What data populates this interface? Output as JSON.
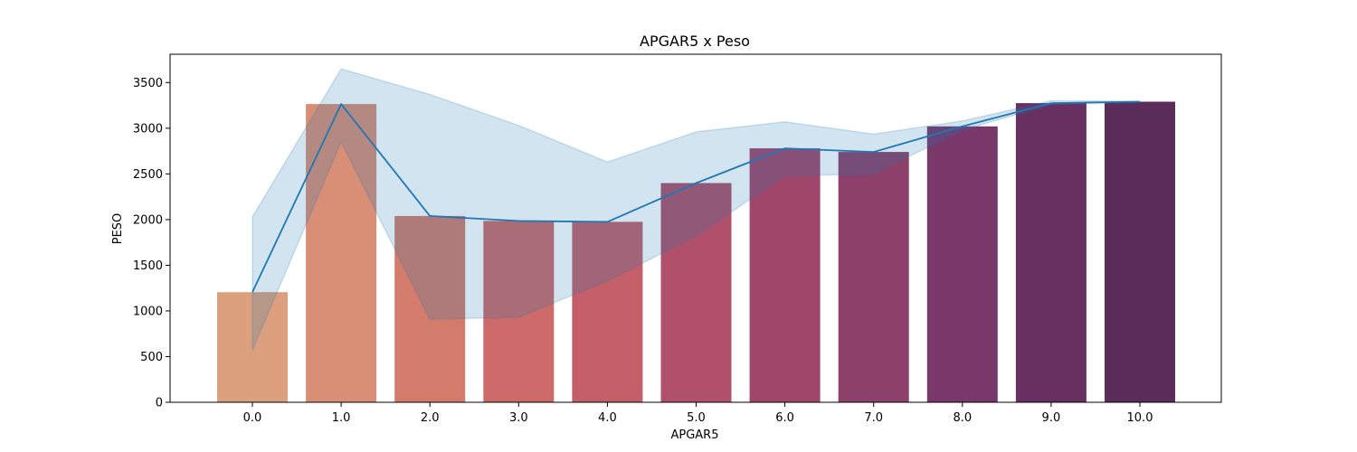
{
  "chart_data": {
    "type": "bar",
    "title": "APGAR5 x Peso",
    "xlabel": "APGAR5",
    "ylabel": "PESO",
    "categories": [
      "0.0",
      "1.0",
      "2.0",
      "3.0",
      "4.0",
      "5.0",
      "6.0",
      "7.0",
      "8.0",
      "9.0",
      "10.0"
    ],
    "values": [
      1205,
      3265,
      2040,
      1985,
      1975,
      2400,
      2780,
      2740,
      3020,
      3275,
      3290
    ],
    "bar_colors": [
      "#dda07e",
      "#d98e76",
      "#d37c6c",
      "#cd6b6a",
      "#c45f69",
      "#b0506a",
      "#a0466a",
      "#8d416a",
      "#78396a",
      "#682f61",
      "#5a2d5b"
    ],
    "line": {
      "values": [
        1205,
        3265,
        2040,
        1985,
        1975,
        2400,
        2780,
        2740,
        3020,
        3275,
        3290
      ],
      "ci_upper": [
        2030,
        3650,
        3370,
        3030,
        2630,
        2960,
        3070,
        2935,
        3080,
        3300,
        3295
      ],
      "ci_lower": [
        570,
        2850,
        910,
        930,
        1330,
        1820,
        2480,
        2500,
        2980,
        3260,
        3285
      ],
      "color": "#1f77b4"
    },
    "yticks": [
      "0",
      "500",
      "1000",
      "1500",
      "2000",
      "2500",
      "3000",
      "3500"
    ],
    "ylim": [
      0,
      3810
    ],
    "grid": false,
    "legend": "none"
  }
}
